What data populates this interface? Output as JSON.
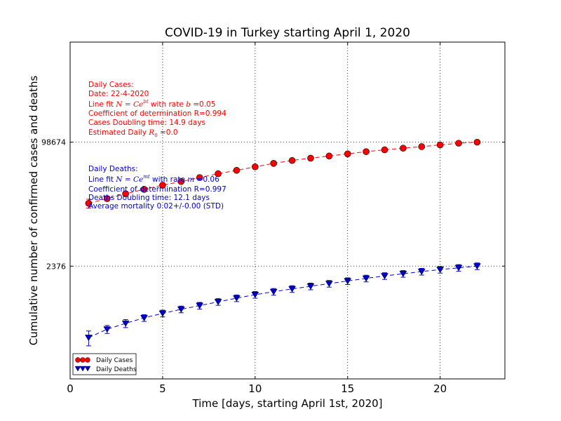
{
  "chart_data": {
    "type": "scatter",
    "title": "COVID-19 in Turkey starting April 1, 2020",
    "xlabel": "Time [days, starting April 1st, 2020]",
    "ylabel": "Cumulative number of confirmed cases and deaths",
    "xlim": [
      0,
      23.5
    ],
    "ylim_log": [
      80,
      2000000
    ],
    "yscale": "log",
    "grid": true,
    "legend_position": "bottom-left",
    "xticks": [
      0,
      5,
      10,
      15,
      20
    ],
    "xtick_labels": [
      "0",
      "5",
      "10",
      "15",
      "20"
    ],
    "yticks": [
      2376,
      98674
    ],
    "ytick_labels": [
      "2376",
      "98674"
    ],
    "series": [
      {
        "name": "Daily Cases",
        "color": "#ff0000",
        "marker": "circle",
        "x": [
          1,
          2,
          3,
          4,
          5,
          6,
          7,
          8,
          9,
          10,
          11,
          12,
          13,
          14,
          15,
          16,
          17,
          18,
          19,
          20,
          21,
          22
        ],
        "y": [
          15700,
          18100,
          20900,
          23900,
          27100,
          30200,
          34100,
          38200,
          42300,
          47000,
          52200,
          56900,
          61000,
          65100,
          69400,
          74200,
          78500,
          82300,
          86300,
          90900,
          95600,
          98674
        ]
      },
      {
        "name": "Daily Deaths",
        "color": "#0000cc",
        "marker": "triangle-down",
        "x": [
          1,
          2,
          3,
          4,
          5,
          6,
          7,
          8,
          9,
          10,
          11,
          12,
          13,
          14,
          15,
          16,
          17,
          18,
          19,
          20,
          21,
          22
        ],
        "y": [
          277,
          356,
          425,
          501,
          574,
          649,
          725,
          812,
          908,
          1006,
          1101,
          1198,
          1296,
          1403,
          1518,
          1643,
          1769,
          1890,
          2017,
          2140,
          2259,
          2376
        ]
      }
    ],
    "fit_lines": [
      {
        "series": "Daily Cases",
        "style": "dashed",
        "color": "#ff0000"
      },
      {
        "series": "Daily Deaths",
        "style": "dashed",
        "color": "#0000cc"
      }
    ]
  },
  "annotations": {
    "cases": {
      "line1": "Daily Cases:",
      "line2": "Date: 22-4-2020",
      "line3_prefix": "Line fit ",
      "line3_formula": "N = Ce",
      "line3_sup": "bt",
      "line3_mid": " with rate ",
      "line3_var": "b",
      "line3_suffix": " =0.05",
      "line4": "Coefficient of determination R=0.994",
      "line5": "Cases Doubling time: 14.9 days",
      "line6_prefix": "Estimated Daily ",
      "line6_var": "R",
      "line6_sub": "0",
      "line6_suffix": " =0.0"
    },
    "deaths": {
      "line1": "Daily Deaths:",
      "line2_prefix": "Line fit ",
      "line2_formula": "N = Ce",
      "line2_sup": "mt",
      "line2_mid": " with rate ",
      "line2_var": "m",
      "line2_suffix": " =0.06",
      "line3": "Coefficient of determination R=0.997",
      "line4": "Deaths Doubling time: 12.1 days",
      "line5": "Average mortality 0.02+/-0.00 (STD)"
    }
  },
  "legend": {
    "cases_label": "Daily Cases",
    "deaths_label": "Daily Deaths"
  },
  "colors": {
    "cases": "#ff0000",
    "deaths": "#0000cc"
  }
}
